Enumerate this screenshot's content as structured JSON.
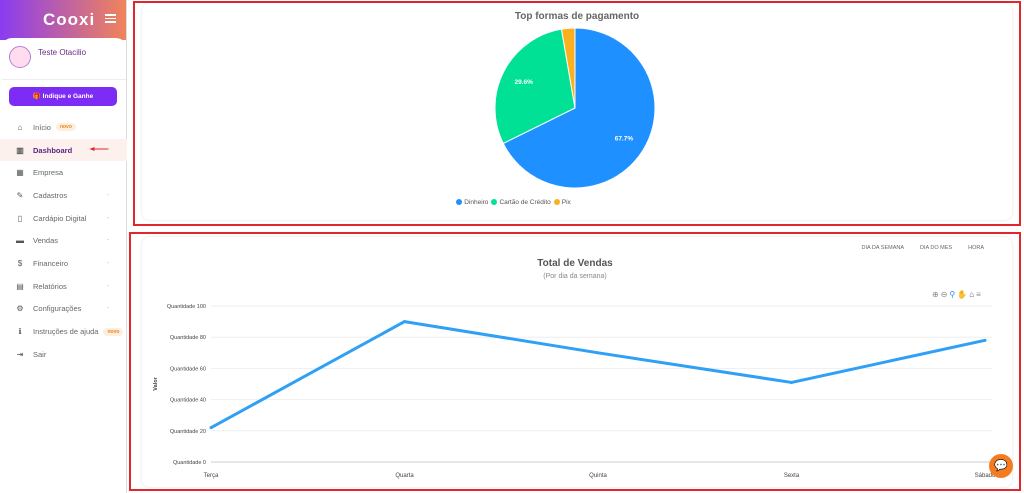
{
  "sidebar": {
    "logo": "Cooxi",
    "user_name": "Teste Otacilio",
    "indique_label": "🎁 Indique e Ganhe",
    "items": [
      {
        "icon": "home-icon",
        "glyph": "⌂",
        "label": "Início",
        "badge": "novo"
      },
      {
        "icon": "chart-bar-icon",
        "glyph": "▥",
        "label": "Dashboard",
        "active": true
      },
      {
        "icon": "building-icon",
        "glyph": "▦",
        "label": "Empresa"
      },
      {
        "icon": "edit-icon",
        "glyph": "✎",
        "label": "Cadastros",
        "caret": "-"
      },
      {
        "icon": "mobile-icon",
        "glyph": "▯",
        "label": "Cardápio Digital",
        "caret": "-"
      },
      {
        "icon": "money-icon",
        "glyph": "▬",
        "label": "Vendas",
        "caret": "-"
      },
      {
        "icon": "dollar-icon",
        "glyph": "$",
        "label": "Financeiro",
        "caret": "-"
      },
      {
        "icon": "report-icon",
        "glyph": "▤",
        "label": "Relatórios",
        "caret": "-"
      },
      {
        "icon": "gear-icon",
        "glyph": "⚙",
        "label": "Configurações",
        "caret": "-"
      },
      {
        "icon": "info-icon",
        "glyph": "ℹ",
        "label": "Instruções de ajuda",
        "badge": "novo"
      },
      {
        "icon": "sign-out-icon",
        "glyph": "⇥",
        "label": "Sair"
      }
    ]
  },
  "pie": {
    "title": "Top formas de pagamento"
  },
  "line": {
    "tabs": [
      "DIA DA SEMANA",
      "DIA DO MES",
      "HORA"
    ]
  },
  "chart_data": [
    {
      "type": "pie",
      "title": "Top formas de pagamento",
      "legend": "bottom",
      "slices": [
        {
          "label": "Dinheiro",
          "value": 67.7,
          "color": "#1e90ff",
          "text": "67.7%"
        },
        {
          "label": "Cartão de Crédito",
          "value": 29.6,
          "color": "#00e196",
          "text": "29.6%"
        },
        {
          "label": "Pix",
          "value": 2.7,
          "color": "#fbb020",
          "text": ""
        }
      ]
    },
    {
      "type": "line",
      "title": "Total de Vendas",
      "subtitle": "(Por dia da semana)",
      "ylabel": "Valor",
      "categories": [
        "Terça",
        "Quarta",
        "Quinta",
        "Sexta",
        "Sábado"
      ],
      "series": [
        {
          "name": "Quantidade",
          "values": [
            22,
            90,
            70,
            51,
            78
          ],
          "color": "#2fa0f5"
        }
      ],
      "ylim": [
        0,
        100
      ],
      "yticks": [
        "Quantidade 0",
        "Quantidade 20",
        "Quantidade 40",
        "Quantidade 60",
        "Quantidade 80",
        "Quantidade 100"
      ],
      "grid": true
    }
  ]
}
